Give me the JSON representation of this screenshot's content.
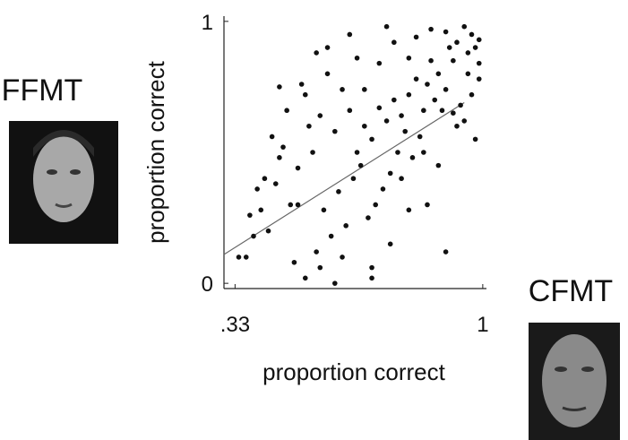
{
  "chart_data": {
    "type": "scatter",
    "x_label": "proportion correct",
    "y_label": "proportion correct",
    "xlim": [
      0.3,
      1.01
    ],
    "ylim": [
      -0.02,
      1.02
    ],
    "xticks": [
      {
        "value": 0.33,
        "label": ".33"
      },
      1
    ],
    "yticks": [
      0,
      1
    ],
    "color": "#111111",
    "x": [
      0.95,
      0.97,
      0.98,
      0.99,
      0.93,
      0.96,
      0.92,
      0.9,
      0.88,
      0.97,
      0.94,
      0.99,
      0.91,
      0.86,
      0.89,
      0.95,
      0.98,
      0.85,
      0.87,
      0.93,
      0.82,
      0.84,
      0.8,
      0.78,
      0.83,
      0.81,
      0.76,
      0.79,
      0.74,
      0.77,
      0.72,
      0.75,
      0.7,
      0.73,
      0.68,
      0.71,
      0.66,
      0.69,
      0.64,
      0.67,
      0.62,
      0.65,
      0.6,
      0.63,
      0.58,
      0.61,
      0.56,
      0.59,
      0.54,
      0.57,
      0.52,
      0.55,
      0.5,
      0.53,
      0.48,
      0.51,
      0.46,
      0.49,
      0.44,
      0.47,
      0.42,
      0.45,
      0.4,
      0.43,
      0.38,
      0.41,
      0.36,
      0.39,
      0.34,
      0.37,
      0.52,
      0.6,
      0.7,
      0.75,
      0.8,
      0.85,
      0.9,
      0.88,
      0.58,
      0.64,
      0.66,
      0.72,
      0.76,
      0.82,
      0.86,
      0.74,
      0.55,
      0.68,
      0.8,
      0.92,
      0.96,
      0.99,
      0.9,
      0.84,
      0.78,
      0.45,
      0.5,
      0.56,
      0.62,
      0.7
    ],
    "y": [
      0.98,
      0.95,
      0.9,
      0.84,
      0.92,
      0.8,
      0.85,
      0.74,
      0.8,
      0.72,
      0.68,
      0.78,
      0.9,
      0.85,
      0.66,
      0.62,
      0.55,
      0.76,
      0.7,
      0.6,
      0.78,
      0.66,
      0.72,
      0.64,
      0.56,
      0.48,
      0.7,
      0.58,
      0.62,
      0.5,
      0.67,
      0.42,
      0.55,
      0.36,
      0.6,
      0.3,
      0.5,
      0.25,
      0.66,
      0.45,
      0.74,
      0.4,
      0.58,
      0.22,
      0.8,
      0.35,
      0.64,
      0.18,
      0.5,
      0.28,
      0.72,
      0.12,
      0.44,
      0.6,
      0.3,
      0.76,
      0.52,
      0.08,
      0.38,
      0.66,
      0.2,
      0.48,
      0.28,
      0.56,
      0.18,
      0.4,
      0.1,
      0.36,
      0.1,
      0.26,
      0.02,
      0.0,
      0.02,
      0.15,
      0.28,
      0.3,
      0.12,
      0.45,
      0.9,
      0.95,
      0.86,
      0.84,
      0.92,
      0.94,
      0.97,
      0.98,
      0.88,
      0.74,
      0.86,
      0.65,
      0.88,
      0.93,
      0.96,
      0.5,
      0.4,
      0.75,
      0.3,
      0.06,
      0.1,
      0.06
    ],
    "fit": {
      "x": [
        0.3,
        0.95
      ],
      "y": [
        0.11,
        0.69
      ],
      "color": "#666666"
    },
    "images": [
      {
        "label": "FFMT"
      },
      {
        "label": "CFMT"
      }
    ]
  }
}
